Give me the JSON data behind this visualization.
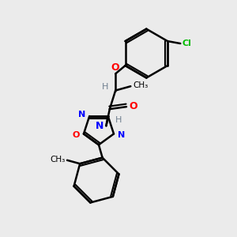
{
  "background_color": "#ebebeb",
  "atom_colors": {
    "C": "#000000",
    "H": "#708090",
    "N": "#0000ff",
    "O": "#ff0000",
    "Cl": "#00bb00"
  },
  "bond_color": "#000000",
  "bond_width": 1.8,
  "figsize": [
    3.0,
    3.0
  ],
  "dpi": 100
}
